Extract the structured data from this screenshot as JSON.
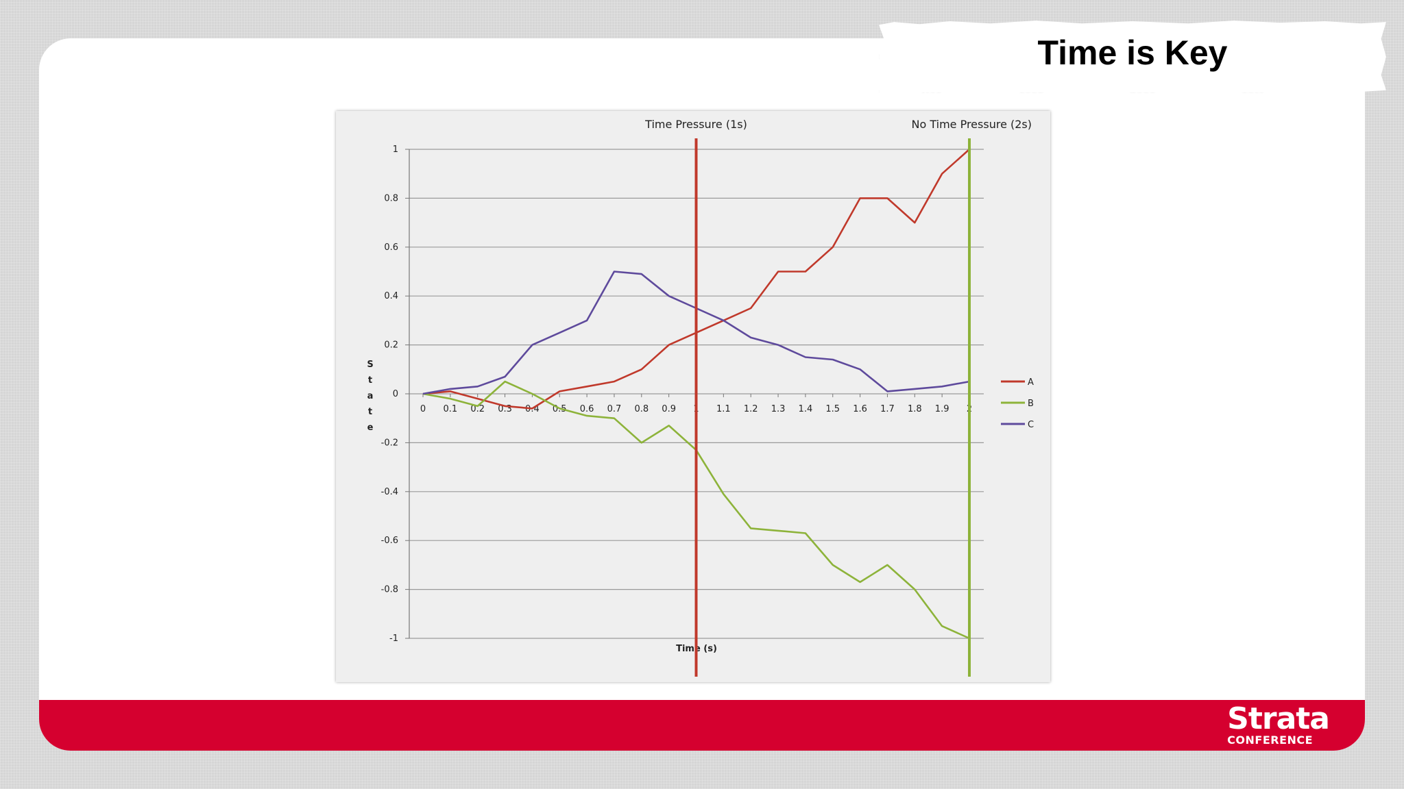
{
  "slide": {
    "title": "Time is Key",
    "logo_main": "Strata",
    "logo_sub": "CONFERENCE",
    "brand_color": "#d5002f"
  },
  "chart_data": {
    "type": "line",
    "ylabel": "State",
    "xlabel": "Time (s)",
    "x": [
      0,
      0.1,
      0.2,
      0.3,
      0.4,
      0.5,
      0.6,
      0.7,
      0.8,
      0.9,
      1,
      1.1,
      1.2,
      1.3,
      1.4,
      1.5,
      1.6,
      1.7,
      1.8,
      1.9,
      2
    ],
    "x_tick_labels": [
      "0",
      "0.1",
      "0.2",
      "0.3",
      "0.4",
      "0.5",
      "0.6",
      "0.7",
      "0.8",
      "0.9",
      "1",
      "1.1",
      "1.2",
      "1.3",
      "1.4",
      "1.5",
      "1.6",
      "1.7",
      "1.8",
      "1.9",
      "2"
    ],
    "y_ticks": [
      1,
      0.8,
      0.6,
      0.4,
      0.2,
      0,
      -0.2,
      -0.4,
      -0.6,
      -0.8,
      -1
    ],
    "y_tick_labels": [
      "1",
      "0.8",
      "0.6",
      "0.4",
      "0.2",
      "0",
      "-0.2",
      "-0.4",
      "-0.6",
      "-0.8",
      "-1"
    ],
    "ylim": [
      -1,
      1
    ],
    "xlim": [
      0,
      2
    ],
    "grid": true,
    "legend_position": "right",
    "series": [
      {
        "name": "A",
        "color": "#c0392b",
        "values": [
          0,
          0.01,
          -0.02,
          -0.05,
          -0.06,
          0.01,
          0.03,
          0.05,
          0.1,
          0.2,
          0.25,
          0.3,
          0.35,
          0.5,
          0.5,
          0.6,
          0.8,
          0.8,
          0.7,
          0.9,
          1.0
        ]
      },
      {
        "name": "B",
        "color": "#8db33a",
        "values": [
          0,
          -0.02,
          -0.05,
          0.05,
          0.0,
          -0.06,
          -0.09,
          -0.1,
          -0.2,
          -0.13,
          -0.23,
          -0.41,
          -0.55,
          -0.56,
          -0.57,
          -0.7,
          -0.77,
          -0.7,
          -0.8,
          -0.95,
          -1.0
        ]
      },
      {
        "name": "C",
        "color": "#5e4a9c",
        "values": [
          0,
          0.02,
          0.03,
          0.07,
          0.2,
          0.25,
          0.3,
          0.5,
          0.49,
          0.4,
          0.35,
          0.3,
          0.23,
          0.2,
          0.15,
          0.14,
          0.1,
          0.01,
          0.02,
          0.03,
          0.05
        ]
      }
    ],
    "markers": [
      {
        "label": "Time Pressure (1s)",
        "x": 1,
        "color": "#c0392b"
      },
      {
        "label": "No Time Pressure (2s)",
        "x": 2,
        "color": "#8db33a"
      }
    ]
  }
}
